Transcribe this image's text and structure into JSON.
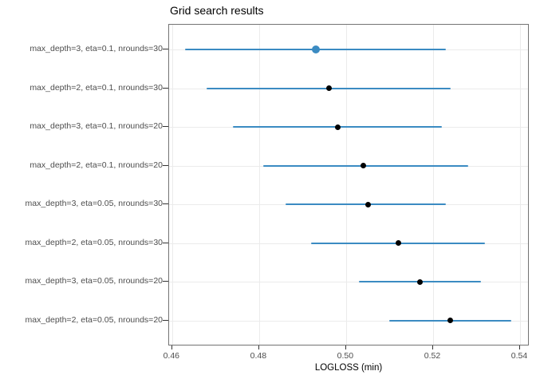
{
  "chart_data": {
    "type": "scatter",
    "subtype": "horizontal-dot-plot-with-error-bars",
    "title": "Grid search results",
    "xlabel": "LOGLOSS (min)",
    "ylabel": "",
    "xlim": [
      0.46,
      0.54
    ],
    "grid": "on",
    "legend": "none",
    "x_axis": {
      "tick_values": [
        0.46,
        0.48,
        0.5,
        0.52,
        0.54
      ],
      "tick_labels": [
        "0.46",
        "0.48",
        "0.50",
        "0.52",
        "0.54"
      ]
    },
    "rows": [
      {
        "label": "max_depth=3, eta=0.1, nrounds=30",
        "min": 0.463,
        "value": 0.493,
        "max": 0.523,
        "highlight": true
      },
      {
        "label": "max_depth=2, eta=0.1, nrounds=30",
        "min": 0.468,
        "value": 0.496,
        "max": 0.524,
        "highlight": false
      },
      {
        "label": "max_depth=3, eta=0.1, nrounds=20",
        "min": 0.474,
        "value": 0.498,
        "max": 0.522,
        "highlight": false
      },
      {
        "label": "max_depth=2, eta=0.1, nrounds=20",
        "min": 0.481,
        "value": 0.504,
        "max": 0.528,
        "highlight": false
      },
      {
        "label": "max_depth=3, eta=0.05, nrounds=30",
        "min": 0.486,
        "value": 0.505,
        "max": 0.523,
        "highlight": false
      },
      {
        "label": "max_depth=2, eta=0.05, nrounds=30",
        "min": 0.492,
        "value": 0.512,
        "max": 0.532,
        "highlight": false
      },
      {
        "label": "max_depth=3, eta=0.05, nrounds=20",
        "min": 0.503,
        "value": 0.517,
        "max": 0.531,
        "highlight": false
      },
      {
        "label": "max_depth=2, eta=0.05, nrounds=20",
        "min": 0.51,
        "value": 0.524,
        "max": 0.538,
        "highlight": false
      }
    ],
    "colors": {
      "errorbar": "#3b8bc2",
      "highlight_point": "#3b8bc2",
      "point": "#000000",
      "gridline": "#ebebeb",
      "panel_border": "#737373",
      "axis_text": "#4d4d4d",
      "title_text": "#000000"
    }
  }
}
